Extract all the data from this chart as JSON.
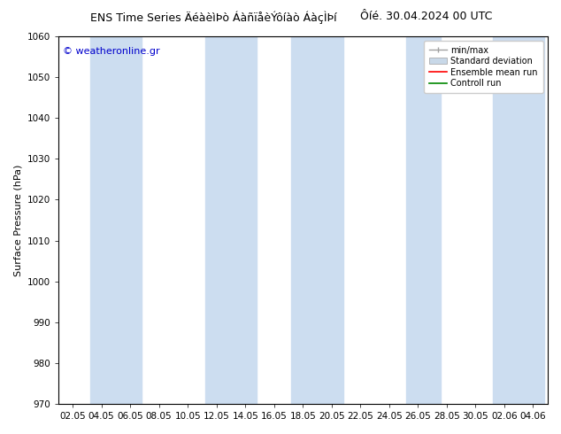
{
  "title_left": "ENS Time Series ÄéàèìÞò ÁàñïåèÝôíàò ÁàçÌÞí",
  "title_right": "Ôíé. 30.04.2024 00 UTC",
  "ylabel": "Surface Pressure (hPa)",
  "ylim": [
    970,
    1060
  ],
  "yticks": [
    970,
    980,
    990,
    1000,
    1010,
    1020,
    1030,
    1040,
    1050,
    1060
  ],
  "xtick_labels": [
    "02.05",
    "04.05",
    "06.05",
    "08.05",
    "10.05",
    "12.05",
    "14.05",
    "16.05",
    "18.05",
    "20.05",
    "22.05",
    "24.05",
    "26.05",
    "28.05",
    "30.05",
    "02.06",
    "04.06"
  ],
  "background_color": "#ffffff",
  "plot_bg_color": "#ffffff",
  "band_color": "#ccddf0",
  "watermark": "© weatheronline.gr",
  "watermark_color": "#0000cc",
  "legend_entries": [
    "min/max",
    "Standard deviation",
    "Ensemble mean run",
    "Controll run"
  ],
  "minmax_color": "#a0a0a0",
  "std_color": "#c8d8e8",
  "mean_color": "#ff0000",
  "ctrl_color": "#008800",
  "font_size_title": 9,
  "font_size_axis": 8,
  "font_size_tick": 7.5,
  "font_size_legend": 7,
  "font_size_watermark": 8
}
